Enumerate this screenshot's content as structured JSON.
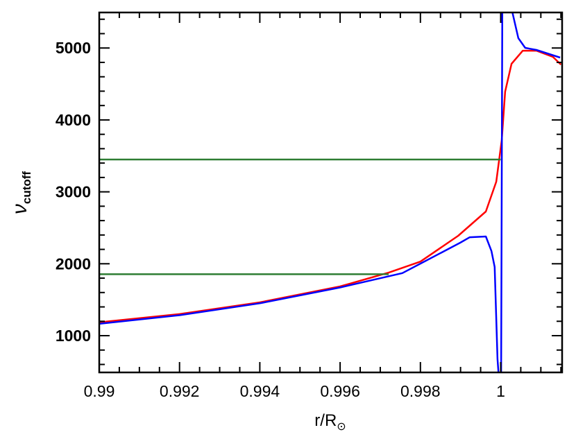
{
  "chart_data": {
    "type": "line",
    "title": "",
    "xlabel": "r/R",
    "xlabel_symbol": "⊙",
    "ylabel": "ν",
    "ylabel_subscript": "cutoff",
    "xlim": [
      0.99,
      1.00153
    ],
    "ylim": [
      489,
      5494
    ],
    "grid": false,
    "x_ticks": [
      0.99,
      0.992,
      0.994,
      0.996,
      0.998,
      1
    ],
    "x_tick_labels": [
      "0.99",
      "0.992",
      "0.994",
      "0.996",
      "0.998",
      "1"
    ],
    "y_ticks": [
      1000,
      2000,
      3000,
      4000,
      5000
    ],
    "y_tick_labels": [
      "1000",
      "2000",
      "3000",
      "4000",
      "5000"
    ],
    "x_minor_step": 0.0005,
    "y_minor_step": 200,
    "series": [
      {
        "color": "#ff0000",
        "x": [
          0.99,
          0.992,
          0.994,
          0.996,
          0.99721,
          0.998,
          0.99894,
          0.99963,
          0.99989,
          1.000026,
          1.00011,
          1.00027,
          1.00055,
          1.00089,
          1.0013,
          1.0015
        ],
        "y": [
          1185,
          1300,
          1463,
          1685,
          1877,
          2030,
          2389,
          2726,
          3141,
          3720,
          4394,
          4780,
          4963,
          4963,
          4877,
          4770
        ]
      },
      {
        "color": "#0000ff",
        "x": [
          0.99,
          0.992,
          0.994,
          0.996,
          0.99755,
          0.99899,
          0.99923,
          0.99963,
          0.99977,
          0.99985,
          0.99992,
          0.99995,
          1.00001,
          1.00004,
          1.00028,
          1.00044,
          1.00061,
          1.00089,
          1.00148
        ],
        "y": [
          1165,
          1285,
          1450,
          1670,
          1870,
          2292,
          2369,
          2379,
          2176,
          1955,
          672,
          -2000,
          -2000,
          9000,
          5523,
          5137,
          5002,
          4973,
          4867
        ]
      },
      {
        "color": "#2e7d32",
        "x": [
          0.99,
          1.0
        ],
        "y": [
          3450,
          3450
        ]
      },
      {
        "color": "#2e7d32",
        "x": [
          0.99,
          0.99721
        ],
        "y": [
          1855,
          1855
        ]
      }
    ]
  }
}
